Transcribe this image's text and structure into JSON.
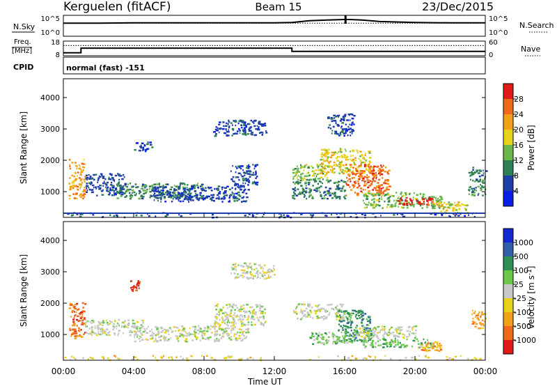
{
  "header": {
    "station": "Kerguelen (fitACF)",
    "beam": "Beam 15",
    "date": "23/Dec/2015"
  },
  "side_labels": {
    "nsky": "N.Sky",
    "nsearch": "N.Search",
    "freq_top": "Freq.",
    "freq_unit": "[MHz]",
    "nave": "Nave",
    "cpid": "CPID",
    "cpid_value": "normal (fast) -151"
  },
  "chart_data": [
    {
      "type": "line",
      "name": "noise",
      "left_ticks": [
        "10^5",
        "10^0"
      ],
      "right_ticks": [
        "10^5",
        "10^0"
      ],
      "xlim": [
        0,
        24
      ],
      "series": [
        {
          "name": "N.Sky",
          "style": "solid",
          "x": [
            0,
            2,
            4,
            8,
            12,
            13,
            14,
            15,
            16,
            16.2,
            17,
            18,
            20,
            22,
            24
          ],
          "y": [
            0.78,
            0.78,
            0.8,
            0.8,
            0.8,
            0.82,
            0.93,
            0.97,
            1.0,
            1.0,
            0.97,
            0.88,
            0.82,
            0.8,
            0.8
          ]
        },
        {
          "name": "N.Search",
          "style": "dotted",
          "x": [
            0,
            24
          ],
          "y": [
            0.78,
            0.78
          ]
        }
      ]
    },
    {
      "type": "line",
      "name": "frequency",
      "left_ticks": [
        "18",
        "8"
      ],
      "right_ticks": [
        "60",
        "0"
      ],
      "ylim_left": [
        8,
        18
      ],
      "ylim_right": [
        0,
        60
      ],
      "xlim": [
        0,
        24
      ],
      "series": [
        {
          "name": "Freq.",
          "style": "solid",
          "x": [
            0,
            1,
            1,
            13,
            13,
            24
          ],
          "y": [
            10,
            10,
            13.2,
            13.2,
            11,
            11
          ]
        },
        {
          "name": "Nave",
          "style": "dotted",
          "x": [
            0,
            24
          ],
          "y": [
            42,
            42
          ]
        }
      ]
    },
    {
      "type": "heatmap",
      "name": "power",
      "ylabel": "Slant Range [km]",
      "yticks": [
        1000,
        2000,
        3000,
        4000
      ],
      "ylim": [
        180,
        4600
      ],
      "xlim": [
        0,
        24
      ],
      "colorbar_label": "Power [dB]",
      "colorbar_ticks": [
        "4",
        "8",
        "12",
        "16",
        "20",
        "24",
        "28"
      ],
      "colors": [
        "#0a1fe6",
        "#1f3fa8",
        "#2f7f55",
        "#6ab84a",
        "#e8d21a",
        "#f2a01a",
        "#ee6a1a",
        "#e01a14"
      ],
      "regions": [
        {
          "x": [
            0.3,
            1.2
          ],
          "y": [
            800,
            2050
          ],
          "level": 5
        },
        {
          "x": [
            1.2,
            3.5
          ],
          "y": [
            900,
            1600
          ],
          "level": 1
        },
        {
          "x": [
            3.0,
            8.0
          ],
          "y": [
            800,
            1300
          ],
          "level": 2
        },
        {
          "x": [
            5.0,
            10.5
          ],
          "y": [
            700,
            1200
          ],
          "level": 1
        },
        {
          "x": [
            4.0,
            5.0
          ],
          "y": [
            2300,
            2600
          ],
          "level": 1
        },
        {
          "x": [
            9.5,
            11.0
          ],
          "y": [
            1200,
            1900
          ],
          "level": 1
        },
        {
          "x": [
            8.5,
            11.5
          ],
          "y": [
            2800,
            3300
          ],
          "level": 1
        },
        {
          "x": [
            13.0,
            15.0
          ],
          "y": [
            1400,
            1900
          ],
          "level": 3
        },
        {
          "x": [
            14.5,
            17.5
          ],
          "y": [
            1600,
            2400
          ],
          "level": 4
        },
        {
          "x": [
            16.0,
            18.5
          ],
          "y": [
            900,
            1900
          ],
          "level": 6
        },
        {
          "x": [
            13.0,
            16.0
          ],
          "y": [
            800,
            1400
          ],
          "level": 2
        },
        {
          "x": [
            17.0,
            21.5
          ],
          "y": [
            500,
            1000
          ],
          "level": 3
        },
        {
          "x": [
            19.0,
            21.0
          ],
          "y": [
            600,
            850
          ],
          "level": 7
        },
        {
          "x": [
            21.0,
            23.0
          ],
          "y": [
            300,
            700
          ],
          "level": 4
        },
        {
          "x": [
            23.0,
            24.0
          ],
          "y": [
            900,
            1800
          ],
          "level": 2
        },
        {
          "x": [
            15.0,
            16.5
          ],
          "y": [
            2800,
            3500
          ],
          "level": 1
        },
        {
          "x": [
            0.0,
            24.0
          ],
          "y": [
            200,
            350
          ],
          "level": 1
        }
      ]
    },
    {
      "type": "heatmap",
      "name": "velocity",
      "ylabel": "Slant Range [km]",
      "yticks": [
        1000,
        2000,
        3000,
        4000
      ],
      "ylim": [
        180,
        4600
      ],
      "xlim": [
        0,
        24
      ],
      "colorbar_label": "Velocity [m s^-1]",
      "colorbar_ticks": [
        "1000",
        "500",
        "100",
        "25",
        "-25",
        "-100",
        "-500",
        "-1000"
      ],
      "colors": [
        "#1428d2",
        "#2f5fa8",
        "#2f8f55",
        "#6cc84a",
        "#c8c8c8",
        "#e8d21a",
        "#f2a01a",
        "#ee6a1a",
        "#e01a14"
      ],
      "regions": [
        {
          "x": [
            0.3,
            1.2
          ],
          "y": [
            900,
            2050
          ],
          "level": 7
        },
        {
          "x": [
            1.2,
            4.5
          ],
          "y": [
            1000,
            1500
          ],
          "level": 4
        },
        {
          "x": [
            4.0,
            10.5
          ],
          "y": [
            800,
            1300
          ],
          "level": 4
        },
        {
          "x": [
            3.8,
            4.3
          ],
          "y": [
            2400,
            2900
          ],
          "level": 8
        },
        {
          "x": [
            8.5,
            11.5
          ],
          "y": [
            1300,
            2000
          ],
          "level": 4
        },
        {
          "x": [
            9.5,
            12.0
          ],
          "y": [
            2800,
            3300
          ],
          "level": 4
        },
        {
          "x": [
            13.0,
            16.0
          ],
          "y": [
            1500,
            2000
          ],
          "level": 4
        },
        {
          "x": [
            15.5,
            17.5
          ],
          "y": [
            800,
            1800
          ],
          "level": 2
        },
        {
          "x": [
            14.0,
            16.5
          ],
          "y": [
            700,
            1100
          ],
          "level": 3
        },
        {
          "x": [
            16.5,
            20.0
          ],
          "y": [
            900,
            1300
          ],
          "level": 4
        },
        {
          "x": [
            17.0,
            21.0
          ],
          "y": [
            600,
            900
          ],
          "level": 3
        },
        {
          "x": [
            20.0,
            21.5
          ],
          "y": [
            500,
            800
          ],
          "level": 6
        },
        {
          "x": [
            23.2,
            24.0
          ],
          "y": [
            1200,
            1800
          ],
          "level": 6
        },
        {
          "x": [
            0.0,
            24.0
          ],
          "y": [
            200,
            350
          ],
          "level": 5
        }
      ]
    }
  ],
  "x_axis": {
    "ticks": [
      "00:00",
      "04:00",
      "08:00",
      "12:00",
      "16:00",
      "20:00",
      "00:00"
    ],
    "label": "Time UT"
  }
}
